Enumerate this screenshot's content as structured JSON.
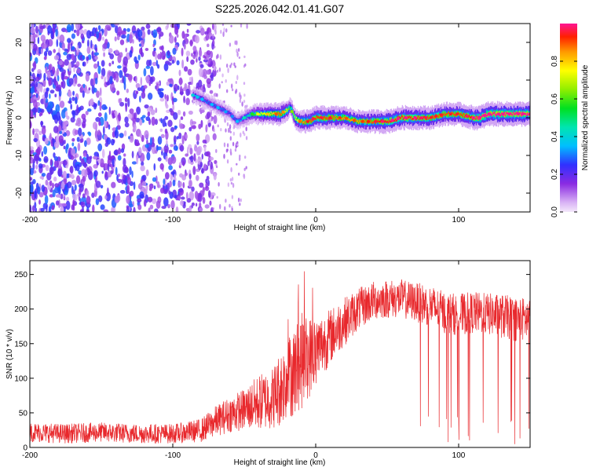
{
  "title": "S225.2026.042.01.41.G07",
  "chart_data": [
    {
      "type": "heatmap",
      "title": "S225.2026.042.01.41.G07",
      "xlabel": "Height of straight line (km)",
      "ylabel": "Frequency (Hz)",
      "xlim": [
        -200,
        150
      ],
      "ylim": [
        -25,
        25
      ],
      "xticks": [
        -200,
        -100,
        0,
        100
      ],
      "yticks": [
        -20,
        -10,
        0,
        10,
        20
      ],
      "colorbar": {
        "label": "Normalized spectral amplitude",
        "range": [
          0,
          1
        ],
        "ticks": [
          "0.0",
          "0.2",
          "0.4",
          "0.6",
          "0.8"
        ]
      },
      "ridge": {
        "description": "dominant frequency trace vs height",
        "x": [
          -86,
          -80,
          -75,
          -70,
          -65,
          -60,
          -55,
          -50,
          -45,
          -40,
          -35,
          -30,
          -25,
          -20,
          -18,
          -15,
          -12,
          -10,
          -5,
          0,
          10,
          20,
          30,
          40,
          50,
          60,
          70,
          80,
          90,
          100,
          110,
          115,
          120,
          130,
          140,
          150
        ],
        "y": [
          6,
          5,
          4,
          3,
          2,
          1,
          -1,
          0,
          1,
          1,
          1,
          1,
          1,
          2,
          3,
          0,
          -1,
          -1,
          -1,
          0,
          0,
          0,
          -1,
          -1,
          -1,
          0,
          0,
          0,
          1,
          1,
          0,
          0,
          1,
          1,
          1,
          1
        ],
        "amplitude": [
          0.35,
          0.3,
          0.3,
          0.3,
          0.3,
          0.25,
          0.3,
          0.4,
          0.5,
          0.7,
          0.75,
          0.8,
          0.9,
          0.7,
          0.5,
          0.7,
          0.8,
          0.85,
          0.9,
          0.92,
          0.9,
          0.85,
          0.85,
          0.9,
          0.95,
          0.95,
          0.95,
          0.9,
          0.9,
          0.9,
          0.95,
          1,
          1,
          1,
          1,
          1
        ]
      },
      "noise_region": {
        "x_range": [
          -200,
          -75
        ],
        "y_range": [
          -25,
          25
        ],
        "amplitude": [
          0.05,
          0.3
        ]
      }
    },
    {
      "type": "line",
      "xlabel": "Height of straight line (km)",
      "ylabel": "SNR (10 * v/v)",
      "xlim": [
        -200,
        150
      ],
      "ylim": [
        0,
        270
      ],
      "xticks": [
        -200,
        -100,
        0,
        100
      ],
      "yticks": [
        0,
        50,
        100,
        150,
        200,
        250
      ],
      "series": [
        {
          "name": "SNR",
          "color": "#e8282c",
          "x": [
            -200,
            -175,
            -150,
            -125,
            -100,
            -90,
            -80,
            -70,
            -60,
            -50,
            -45,
            -40,
            -30,
            -25,
            -20,
            -15,
            -10,
            -5,
            0,
            10,
            20,
            30,
            40,
            50,
            60,
            70,
            80,
            90,
            100,
            110,
            120,
            130,
            140,
            150
          ],
          "y": [
            22,
            20,
            22,
            20,
            20,
            22,
            25,
            38,
            48,
            55,
            60,
            65,
            72,
            85,
            100,
            110,
            125,
            130,
            140,
            160,
            182,
            200,
            212,
            215,
            215,
            210,
            205,
            195,
            192,
            195,
            193,
            190,
            185,
            185
          ],
          "spread": [
            14,
            14,
            14,
            14,
            14,
            15,
            17,
            22,
            26,
            30,
            35,
            40,
            45,
            55,
            60,
            65,
            70,
            60,
            50,
            40,
            35,
            30,
            28,
            28,
            28,
            28,
            30,
            30,
            30,
            30,
            30,
            32,
            32,
            32
          ]
        }
      ]
    }
  ]
}
